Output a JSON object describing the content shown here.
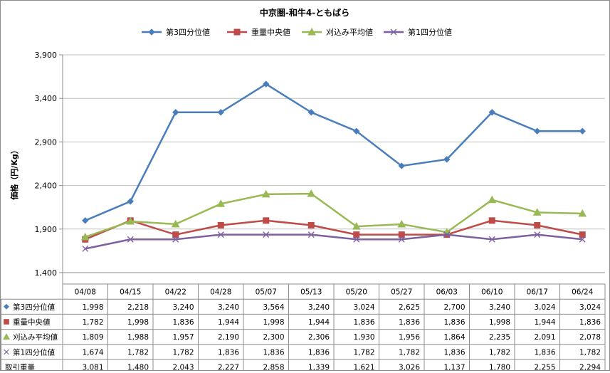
{
  "chart_data": {
    "type": "line",
    "title": "中京圏-和牛4-ともばら",
    "ylabel": "価格（円/Kg）",
    "xlabel": "",
    "categories": [
      "04/08",
      "04/15",
      "04/22",
      "04/28",
      "05/07",
      "05/13",
      "05/20",
      "05/27",
      "06/03",
      "06/10",
      "06/17",
      "06/24"
    ],
    "ylim": [
      1400,
      3900
    ],
    "yticks": [
      1400,
      1900,
      2400,
      2900,
      3400,
      3900
    ],
    "ytick_labels": [
      "1,400",
      "1,900",
      "2,400",
      "2,900",
      "3,400",
      "3,900"
    ],
    "grid": "horizontal",
    "legend_position": "top",
    "series": [
      {
        "name": "第3四分位値",
        "marker": "diamond",
        "color": "#4a7ebb",
        "values": [
          1998,
          2218,
          3240,
          3240,
          3564,
          3240,
          3024,
          2625,
          2700,
          3240,
          3024,
          3024
        ],
        "labels": [
          "1,998",
          "2,218",
          "3,240",
          "3,240",
          "3,564",
          "3,240",
          "3,024",
          "2,625",
          "2,700",
          "3,240",
          "3,024",
          "3,024"
        ]
      },
      {
        "name": "重量中央値",
        "marker": "square",
        "color": "#be4b48",
        "values": [
          1782,
          1998,
          1836,
          1944,
          1998,
          1944,
          1836,
          1836,
          1836,
          1998,
          1944,
          1836
        ],
        "labels": [
          "1,782",
          "1,998",
          "1,836",
          "1,944",
          "1,998",
          "1,944",
          "1,836",
          "1,836",
          "1,836",
          "1,998",
          "1,944",
          "1,836"
        ]
      },
      {
        "name": "刈込み平均値",
        "marker": "triangle",
        "color": "#98b954",
        "values": [
          1809,
          1988,
          1957,
          2190,
          2300,
          2306,
          1930,
          1956,
          1864,
          2235,
          2091,
          2078
        ],
        "labels": [
          "1,809",
          "1,988",
          "1,957",
          "2,190",
          "2,300",
          "2,306",
          "1,930",
          "1,956",
          "1,864",
          "2,235",
          "2,091",
          "2,078"
        ]
      },
      {
        "name": "第1四分位値",
        "marker": "x",
        "color": "#7d60a0",
        "values": [
          1674,
          1782,
          1782,
          1836,
          1836,
          1836,
          1782,
          1782,
          1836,
          1782,
          1836,
          1782
        ],
        "labels": [
          "1,674",
          "1,782",
          "1,782",
          "1,836",
          "1,836",
          "1,836",
          "1,782",
          "1,782",
          "1,836",
          "1,782",
          "1,836",
          "1,782"
        ]
      }
    ],
    "extra_rows": [
      {
        "name": "取引重量",
        "labels": [
          "3,081",
          "1,480",
          "2,043",
          "2,227",
          "2,858",
          "1,339",
          "1,621",
          "3,026",
          "1,137",
          "1,780",
          "2,255",
          "2,294"
        ]
      }
    ]
  }
}
